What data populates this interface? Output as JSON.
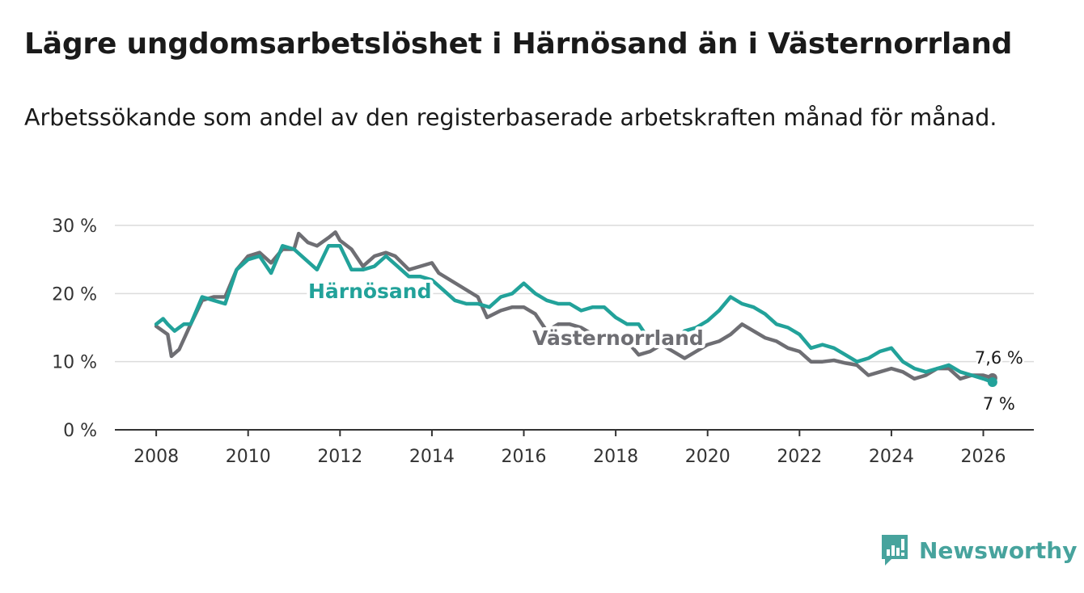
{
  "title": "Lägre ungdomsarbetslöshet i Härnösand än i Västernorrland",
  "subtitle": "Arbetssökande som andel av den registerbaserade arbetskraften månad för månad.",
  "brand": {
    "name": "Newsworthy",
    "icon": "bar-chart-badge-icon",
    "color": "#47a39d"
  },
  "chart_data": {
    "type": "line",
    "title": "Lägre ungdomsarbetslöshet i Härnösand än i Västernorrland",
    "xlabel": "",
    "ylabel": "",
    "xlim": [
      2007.1,
      2027.1
    ],
    "ylim": [
      0,
      30
    ],
    "x_ticks": [
      "2008",
      "2010",
      "2012",
      "2014",
      "2016",
      "2018",
      "2020",
      "2022",
      "2024",
      "2026"
    ],
    "y_ticks": [
      "0 %",
      "10 %",
      "20 %",
      "30 %"
    ],
    "grid": true,
    "series": [
      {
        "name": "Västernorrland",
        "color": "#6e6e73",
        "end_label": "7,6 %",
        "x": [
          2008.0,
          2008.25,
          2008.33,
          2008.5,
          2008.75,
          2009.0,
          2009.25,
          2009.5,
          2009.75,
          2010.0,
          2010.25,
          2010.5,
          2010.75,
          2011.0,
          2011.1,
          2011.3,
          2011.5,
          2011.75,
          2011.9,
          2012.0,
          2012.25,
          2012.5,
          2012.75,
          2013.0,
          2013.2,
          2013.5,
          2013.75,
          2014.0,
          2014.15,
          2015.0,
          2015.2,
          2015.5,
          2015.75,
          2016.0,
          2016.25,
          2016.5,
          2016.75,
          2017.0,
          2017.25,
          2017.5,
          2017.75,
          2018.0,
          2018.25,
          2018.5,
          2018.75,
          2019.0,
          2019.25,
          2019.5,
          2019.75,
          2020.0,
          2020.25,
          2020.5,
          2020.75,
          2021.0,
          2021.25,
          2021.5,
          2021.75,
          2022.0,
          2022.25,
          2022.5,
          2022.75,
          2023.0,
          2023.25,
          2023.5,
          2023.75,
          2024.0,
          2024.25,
          2024.5,
          2024.75,
          2025.0,
          2025.25,
          2025.5,
          2025.75,
          2026.0,
          2026.2
        ],
        "values": [
          15.2,
          14.0,
          10.8,
          11.8,
          15.5,
          19.0,
          19.5,
          19.5,
          23.5,
          25.5,
          26.0,
          24.5,
          26.5,
          26.5,
          28.8,
          27.5,
          27.0,
          28.2,
          29.0,
          27.8,
          26.5,
          24.0,
          25.5,
          26.0,
          25.5,
          23.5,
          24.0,
          24.5,
          23.0,
          19.5,
          16.5,
          17.5,
          18.0,
          18.0,
          17.0,
          14.5,
          15.5,
          15.5,
          15.0,
          14.0,
          13.5,
          13.5,
          13.0,
          11.0,
          11.5,
          12.5,
          11.5,
          10.5,
          11.5,
          12.5,
          13.0,
          14.0,
          15.5,
          14.5,
          13.5,
          13.0,
          12.0,
          11.5,
          10.0,
          10.0,
          10.2,
          9.8,
          9.5,
          8.0,
          8.5,
          9.0,
          8.5,
          7.5,
          8.0,
          9.0,
          9.0,
          7.5,
          8.0,
          8.0,
          7.6
        ]
      },
      {
        "name": "Härnösand",
        "color": "#22a29a",
        "end_label": "7 %",
        "x": [
          2008.0,
          2008.15,
          2008.25,
          2008.4,
          2008.6,
          2008.75,
          2009.0,
          2009.25,
          2009.5,
          2009.75,
          2010.0,
          2010.25,
          2010.5,
          2010.75,
          2011.0,
          2011.25,
          2011.5,
          2011.75,
          2012.0,
          2012.25,
          2012.5,
          2012.75,
          2013.0,
          2013.25,
          2013.5,
          2013.75,
          2014.0,
          2014.25,
          2014.5,
          2014.75,
          2015.0,
          2015.25,
          2015.5,
          2015.75,
          2016.0,
          2016.25,
          2016.5,
          2016.75,
          2017.0,
          2017.25,
          2017.5,
          2017.75,
          2018.0,
          2018.25,
          2018.5,
          2018.75,
          2019.0,
          2019.25,
          2019.5,
          2019.75,
          2020.0,
          2020.25,
          2020.5,
          2020.75,
          2021.0,
          2021.25,
          2021.5,
          2021.75,
          2022.0,
          2022.25,
          2022.5,
          2022.75,
          2023.0,
          2023.25,
          2023.5,
          2023.75,
          2024.0,
          2024.25,
          2024.5,
          2024.75,
          2025.0,
          2025.25,
          2025.5,
          2025.75,
          2026.0,
          2026.2
        ],
        "values": [
          15.5,
          16.3,
          15.5,
          14.5,
          15.5,
          15.5,
          19.5,
          19.0,
          18.5,
          23.5,
          25.0,
          25.5,
          23.0,
          27.0,
          26.5,
          25.0,
          23.5,
          27.0,
          27.0,
          23.5,
          23.5,
          24.0,
          25.5,
          24.0,
          22.5,
          22.5,
          22.0,
          20.5,
          19.0,
          18.5,
          18.5,
          18.0,
          19.5,
          20.0,
          21.5,
          20.0,
          19.0,
          18.5,
          18.5,
          17.5,
          18.0,
          18.0,
          16.5,
          15.5,
          15.5,
          13.0,
          12.5,
          13.0,
          14.5,
          15.0,
          16.0,
          17.5,
          19.5,
          18.5,
          18.0,
          17.0,
          15.5,
          15.0,
          14.0,
          12.0,
          12.5,
          12.0,
          11.0,
          10.0,
          10.5,
          11.5,
          12.0,
          10.0,
          9.0,
          8.5,
          9.0,
          9.5,
          8.5,
          8.0,
          7.5,
          7.0
        ]
      }
    ],
    "annotations": [
      {
        "text": "Härnösand",
        "x": 2012.65,
        "y": 20.4,
        "color": "#22a29a"
      },
      {
        "text": "Västernorrland",
        "x": 2018.05,
        "y": 13.5,
        "color": "#6e6e73"
      }
    ]
  }
}
